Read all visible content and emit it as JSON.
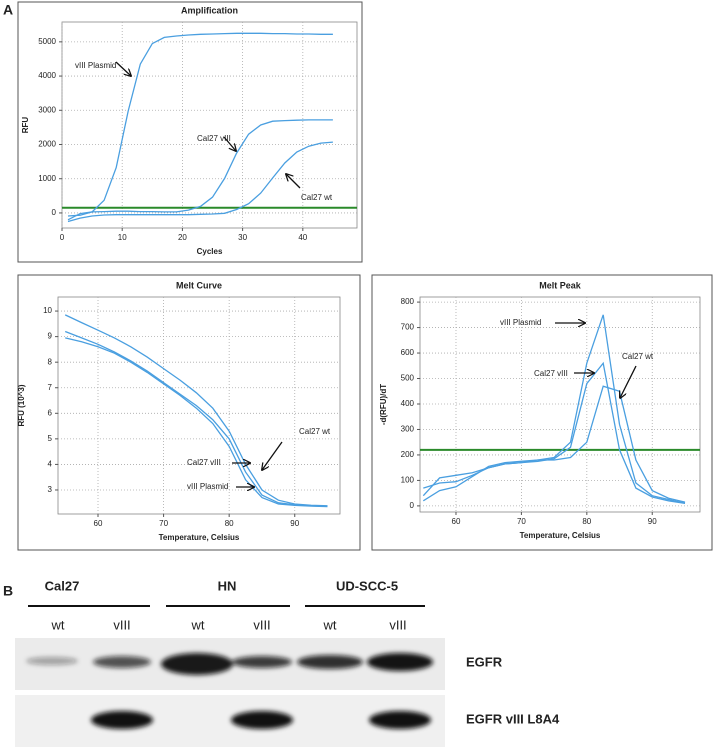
{
  "panel_labels": [
    "A",
    "B"
  ],
  "chart_data": [
    {
      "type": "line",
      "title": "Amplification",
      "xlabel": "Cycles",
      "ylabel": "RFU",
      "xlim": [
        0,
        49
      ],
      "ylim": [
        -440,
        5580
      ],
      "xticks": [
        0,
        10,
        20,
        30,
        40
      ],
      "yticks": [
        0,
        1000,
        2000,
        3000,
        4000,
        5000
      ],
      "grid": true,
      "threshold": {
        "value": 150,
        "color": "#2a8a2a"
      },
      "x": [
        1,
        3,
        5,
        7,
        9,
        11,
        13,
        15,
        17,
        19,
        21,
        23,
        25,
        27,
        29,
        31,
        33,
        35,
        37,
        39,
        41,
        43,
        45
      ],
      "series": [
        {
          "color": "#4a9fe0",
          "values": [
            -90,
            -65,
            30,
            370,
            1325,
            2980,
            4350,
            4950,
            5130,
            5170,
            5200,
            5220,
            5230,
            5240,
            5250,
            5250,
            5250,
            5240,
            5240,
            5230,
            5230,
            5220,
            5220
          ]
        },
        {
          "color": "#4a9fe0",
          "values": [
            -200,
            -20,
            30,
            40,
            50,
            50,
            40,
            40,
            30,
            30,
            84,
            190,
            460,
            1010,
            1750,
            2300,
            2570,
            2680,
            2700,
            2710,
            2720,
            2720,
            2720
          ]
        },
        {
          "color": "#4a9fe0",
          "values": [
            -250,
            -150,
            -90,
            -60,
            -50,
            -50,
            -50,
            -50,
            -50,
            -50,
            -50,
            -40,
            -30,
            -10,
            100,
            270,
            580,
            1025,
            1460,
            1780,
            1950,
            2040,
            2070
          ]
        }
      ],
      "annotations": [
        "vIII Plasmid",
        "Cal27 vIII",
        "Cal27 wt"
      ]
    },
    {
      "type": "line",
      "title": "Melt Curve",
      "xlabel": "Temperature, Celsius",
      "ylabel": "RFU (10^3)",
      "xlim": [
        53.9,
        96.9
      ],
      "ylim": [
        2.06,
        10.55
      ],
      "xticks": [
        60,
        70,
        80,
        90
      ],
      "yticks": [
        3,
        4,
        5,
        6,
        7,
        8,
        9,
        10
      ],
      "grid": true,
      "x": [
        55,
        57.5,
        60,
        62.5,
        65,
        67.5,
        70,
        72.5,
        75,
        77.5,
        80,
        82.5,
        85,
        87.5,
        90,
        92.5,
        95
      ],
      "series": [
        {
          "color": "#4a9fe0",
          "values": [
            9.85,
            9.55,
            9.25,
            8.95,
            8.6,
            8.2,
            7.75,
            7.3,
            6.8,
            6.2,
            5.3,
            4.0,
            3.0,
            2.6,
            2.45,
            2.4,
            2.38
          ]
        },
        {
          "color": "#4a9fe0",
          "values": [
            9.2,
            8.95,
            8.7,
            8.4,
            8.05,
            7.65,
            7.2,
            6.75,
            6.3,
            5.75,
            5.0,
            3.7,
            2.8,
            2.5,
            2.42,
            2.38,
            2.36
          ]
        },
        {
          "color": "#4a9fe0",
          "values": [
            8.95,
            8.8,
            8.6,
            8.35,
            8.0,
            7.6,
            7.15,
            6.7,
            6.2,
            5.6,
            4.7,
            3.4,
            2.7,
            2.45,
            2.4,
            2.37,
            2.35
          ]
        }
      ],
      "annotations": [
        "Cal27 wt",
        "Cal27 vIII",
        "vIII Plasmid"
      ]
    },
    {
      "type": "line",
      "title": "Melt Peak",
      "xlabel": "Temperature, Celsius",
      "ylabel": "-d(RFU)/dT",
      "xlim": [
        54.5,
        97.3
      ],
      "ylim": [
        -24,
        820
      ],
      "xticks": [
        60,
        70,
        80,
        90
      ],
      "yticks": [
        0,
        100,
        200,
        300,
        400,
        500,
        600,
        700,
        800
      ],
      "grid": true,
      "threshold": {
        "value": 220,
        "color": "#2a8a2a"
      },
      "x": [
        55,
        57.5,
        60,
        62.5,
        65,
        67.5,
        70,
        72.5,
        75,
        77.5,
        80,
        82.5,
        85,
        87.5,
        90,
        92.5,
        95
      ],
      "series": [
        {
          "color": "#4a9fe0",
          "values": [
            40,
            110,
            120,
            130,
            150,
            165,
            170,
            180,
            190,
            250,
            560,
            750,
            320,
            90,
            40,
            25,
            10
          ]
        },
        {
          "color": "#4a9fe0",
          "values": [
            70,
            90,
            95,
            120,
            150,
            165,
            170,
            175,
            185,
            230,
            480,
            560,
            220,
            70,
            35,
            20,
            10
          ]
        },
        {
          "color": "#4a9fe0",
          "values": [
            20,
            60,
            75,
            115,
            155,
            170,
            175,
            180,
            180,
            190,
            250,
            470,
            450,
            180,
            60,
            30,
            15
          ]
        }
      ],
      "annotations": [
        "vIII Plasmid",
        "Cal27 vIII",
        "Cal27 wt"
      ]
    }
  ],
  "blot": {
    "cell_lines": [
      "Cal27",
      "HN",
      "UD-SCC-5"
    ],
    "lanes": [
      "wt",
      "vIII",
      "wt",
      "vIII",
      "wt",
      "vIII"
    ],
    "antibodies": [
      "EGFR",
      "EGFR vIII L8A4"
    ]
  }
}
